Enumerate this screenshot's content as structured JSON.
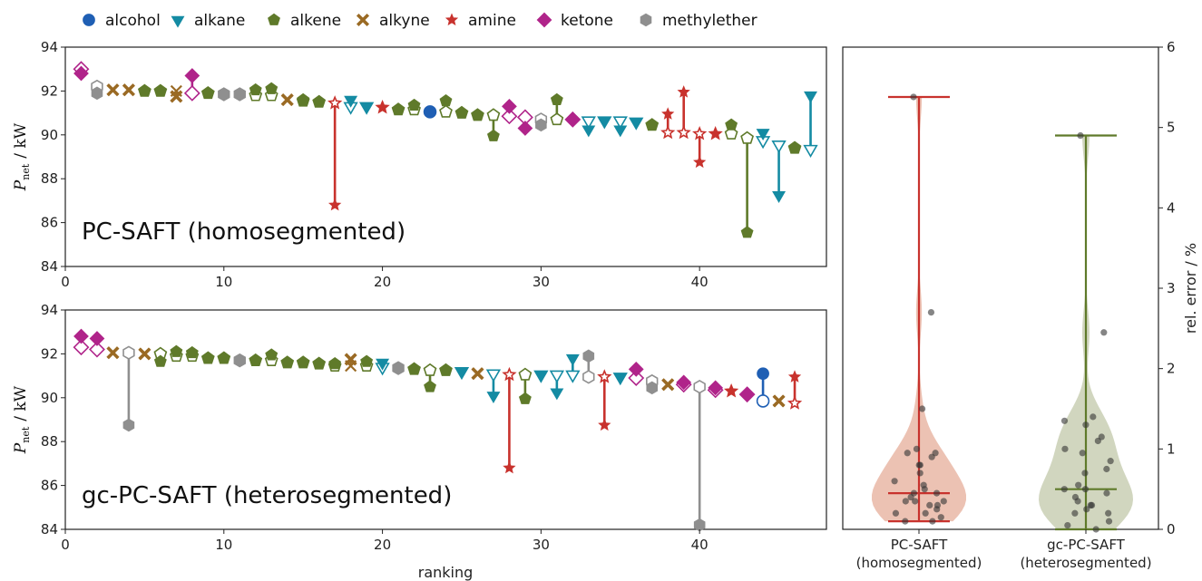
{
  "legend": [
    {
      "label": "alcohol",
      "marker": "circle",
      "color": "#1f5fb4"
    },
    {
      "label": "alkane",
      "marker": "triangle-down",
      "color": "#148ba3"
    },
    {
      "label": "alkene",
      "marker": "pentagon",
      "color": "#5f7a2a"
    },
    {
      "label": "alkyne",
      "marker": "x",
      "color": "#9a6a24"
    },
    {
      "label": "amine",
      "marker": "star",
      "color": "#c8322d"
    },
    {
      "label": "ketone",
      "marker": "diamond",
      "color": "#b0248a"
    },
    {
      "label": "methylether",
      "marker": "hexagon",
      "color": "#8f8f8f"
    }
  ],
  "chart_data": [
    {
      "type": "scatter",
      "panel_label": "PC-SAFT (homosegmented)",
      "ylabel": {
        "symbol": "P",
        "subscript": "net",
        "unit": "/ kW"
      },
      "xlabel": "",
      "xlim": [
        0,
        48
      ],
      "ylim": [
        84,
        94
      ],
      "x_ticks": [
        "0",
        "10",
        "20",
        "30",
        "40"
      ],
      "y_ticks": [
        "84",
        "86",
        "88",
        "90",
        "92",
        "94"
      ],
      "marker_note": "hollow = homosegmented prediction, filled = reference; connected by stem",
      "points": [
        {
          "x": 1,
          "cls": "ketone",
          "hollow": 93.0,
          "filled": 92.8
        },
        {
          "x": 2,
          "cls": "methylether",
          "hollow": 92.2,
          "filled": 91.9
        },
        {
          "x": 3,
          "cls": "alkyne",
          "hollow": 92.05,
          "filled": 92.05
        },
        {
          "x": 4,
          "cls": "alkyne",
          "hollow": 92.05,
          "filled": 92.05
        },
        {
          "x": 5,
          "cls": "alkene",
          "hollow": 92.0,
          "filled": 92.0
        },
        {
          "x": 6,
          "cls": "alkene",
          "hollow": 92.0,
          "filled": 92.0
        },
        {
          "x": 7,
          "cls": "alkyne",
          "hollow": 92.0,
          "filled": 91.75
        },
        {
          "x": 8,
          "cls": "ketone",
          "hollow": 91.9,
          "filled": 92.7
        },
        {
          "x": 9,
          "cls": "alkene",
          "hollow": 91.9,
          "filled": 91.9
        },
        {
          "x": 10,
          "cls": "methylether",
          "hollow": 91.85,
          "filled": 91.85
        },
        {
          "x": 11,
          "cls": "methylether",
          "hollow": 91.85,
          "filled": 91.85
        },
        {
          "x": 12,
          "cls": "alkene",
          "hollow": 91.8,
          "filled": 92.05
        },
        {
          "x": 13,
          "cls": "alkene",
          "hollow": 91.8,
          "filled": 92.1
        },
        {
          "x": 14,
          "cls": "alkyne",
          "hollow": 91.6,
          "filled": 91.6
        },
        {
          "x": 15,
          "cls": "alkene",
          "hollow": 91.55,
          "filled": 91.6
        },
        {
          "x": 16,
          "cls": "alkene",
          "hollow": 91.5,
          "filled": 91.5
        },
        {
          "x": 17,
          "cls": "amine",
          "hollow": 91.45,
          "filled": 86.8
        },
        {
          "x": 18,
          "cls": "alkane",
          "hollow": 91.3,
          "filled": 91.6
        },
        {
          "x": 19,
          "cls": "alkane",
          "hollow": 91.3,
          "filled": 91.3
        },
        {
          "x": 20,
          "cls": "amine",
          "hollow": 91.25,
          "filled": 91.25
        },
        {
          "x": 21,
          "cls": "alkene",
          "hollow": 91.15,
          "filled": 91.15
        },
        {
          "x": 22,
          "cls": "alkene",
          "hollow": 91.15,
          "filled": 91.35
        },
        {
          "x": 23,
          "cls": "alcohol",
          "hollow": 91.05,
          "filled": 91.05
        },
        {
          "x": 24,
          "cls": "alkene",
          "hollow": 91.05,
          "filled": 91.55
        },
        {
          "x": 25,
          "cls": "alkene",
          "hollow": 91.0,
          "filled": 91.0
        },
        {
          "x": 26,
          "cls": "alkene",
          "hollow": 90.9,
          "filled": 90.9
        },
        {
          "x": 27,
          "cls": "alkene",
          "hollow": 90.9,
          "filled": 89.95
        },
        {
          "x": 28,
          "cls": "ketone",
          "hollow": 90.85,
          "filled": 91.3
        },
        {
          "x": 29,
          "cls": "ketone",
          "hollow": 90.8,
          "filled": 90.3
        },
        {
          "x": 30,
          "cls": "methylether",
          "hollow": 90.7,
          "filled": 90.45
        },
        {
          "x": 31,
          "cls": "alkene",
          "hollow": 90.7,
          "filled": 91.6
        },
        {
          "x": 32,
          "cls": "ketone",
          "hollow": 90.7,
          "filled": 90.7
        },
        {
          "x": 33,
          "cls": "alkane",
          "hollow": 90.65,
          "filled": 90.25
        },
        {
          "x": 34,
          "cls": "alkane",
          "hollow": 90.65,
          "filled": 90.65
        },
        {
          "x": 35,
          "cls": "alkane",
          "hollow": 90.65,
          "filled": 90.25
        },
        {
          "x": 36,
          "cls": "alkane",
          "hollow": 90.6,
          "filled": 90.6
        },
        {
          "x": 37,
          "cls": "alkene",
          "hollow": 90.45,
          "filled": 90.45
        },
        {
          "x": 38,
          "cls": "amine",
          "hollow": 90.1,
          "filled": 90.95
        },
        {
          "x": 39,
          "cls": "amine",
          "hollow": 90.1,
          "filled": 91.95
        },
        {
          "x": 40,
          "cls": "amine",
          "hollow": 90.05,
          "filled": 88.75
        },
        {
          "x": 41,
          "cls": "amine",
          "hollow": 90.05,
          "filled": 90.05
        },
        {
          "x": 42,
          "cls": "alkene",
          "hollow": 90.05,
          "filled": 90.45
        },
        {
          "x": 43,
          "cls": "alkene",
          "hollow": 89.85,
          "filled": 85.55
        },
        {
          "x": 44,
          "cls": "alkane",
          "hollow": 89.75,
          "filled": 90.1
        },
        {
          "x": 45,
          "cls": "alkane",
          "hollow": 89.55,
          "filled": 87.25
        },
        {
          "x": 46,
          "cls": "alkene",
          "hollow": 89.4,
          "filled": 89.4
        },
        {
          "x": 47,
          "cls": "alkane",
          "hollow": 89.35,
          "filled": 91.8
        }
      ]
    },
    {
      "type": "scatter",
      "panel_label": "gc-PC-SAFT (heterosegmented)",
      "ylabel": {
        "symbol": "P",
        "subscript": "net",
        "unit": "/ kW"
      },
      "xlabel": "ranking",
      "xlim": [
        0,
        48
      ],
      "ylim": [
        84,
        94
      ],
      "x_ticks": [
        "0",
        "10",
        "20",
        "30",
        "40"
      ],
      "y_ticks": [
        "84",
        "86",
        "88",
        "90",
        "92",
        "94"
      ],
      "marker_note": "hollow = heterosegmented prediction, filled = reference; connected by stem",
      "points": [
        {
          "x": 1,
          "cls": "ketone",
          "hollow": 92.3,
          "filled": 92.8
        },
        {
          "x": 2,
          "cls": "ketone",
          "hollow": 92.2,
          "filled": 92.7
        },
        {
          "x": 3,
          "cls": "alkyne",
          "hollow": 92.05,
          "filled": 92.05
        },
        {
          "x": 4,
          "cls": "methylether",
          "hollow": 92.05,
          "filled": 88.75
        },
        {
          "x": 5,
          "cls": "alkyne",
          "hollow": 92.0,
          "filled": 92.0
        },
        {
          "x": 6,
          "cls": "alkene",
          "hollow": 92.0,
          "filled": 91.65
        },
        {
          "x": 7,
          "cls": "alkene",
          "hollow": 91.9,
          "filled": 92.1
        },
        {
          "x": 8,
          "cls": "alkene",
          "hollow": 91.9,
          "filled": 92.05
        },
        {
          "x": 9,
          "cls": "alkene",
          "hollow": 91.8,
          "filled": 91.8
        },
        {
          "x": 10,
          "cls": "alkene",
          "hollow": 91.8,
          "filled": 91.8
        },
        {
          "x": 11,
          "cls": "methylether",
          "hollow": 91.7,
          "filled": 91.7
        },
        {
          "x": 12,
          "cls": "alkene",
          "hollow": 91.7,
          "filled": 91.7
        },
        {
          "x": 13,
          "cls": "alkene",
          "hollow": 91.7,
          "filled": 91.95
        },
        {
          "x": 14,
          "cls": "alkene",
          "hollow": 91.6,
          "filled": 91.6
        },
        {
          "x": 15,
          "cls": "alkene",
          "hollow": 91.6,
          "filled": 91.6
        },
        {
          "x": 16,
          "cls": "alkene",
          "hollow": 91.55,
          "filled": 91.55
        },
        {
          "x": 17,
          "cls": "alkene",
          "hollow": 91.45,
          "filled": 91.55
        },
        {
          "x": 18,
          "cls": "alkyne",
          "hollow": 91.45,
          "filled": 91.75
        },
        {
          "x": 19,
          "cls": "alkene",
          "hollow": 91.45,
          "filled": 91.65
        },
        {
          "x": 20,
          "cls": "alkane",
          "hollow": 91.4,
          "filled": 91.6
        },
        {
          "x": 21,
          "cls": "methylether",
          "hollow": 91.35,
          "filled": 91.35
        },
        {
          "x": 22,
          "cls": "alkene",
          "hollow": 91.3,
          "filled": 91.3
        },
        {
          "x": 23,
          "cls": "alkene",
          "hollow": 91.25,
          "filled": 90.5
        },
        {
          "x": 24,
          "cls": "alkene",
          "hollow": 91.25,
          "filled": 91.25
        },
        {
          "x": 25,
          "cls": "alkane",
          "hollow": 91.2,
          "filled": 91.2
        },
        {
          "x": 26,
          "cls": "alkyne",
          "hollow": 91.1,
          "filled": 91.1
        },
        {
          "x": 27,
          "cls": "alkane",
          "hollow": 91.1,
          "filled": 90.1
        },
        {
          "x": 28,
          "cls": "amine",
          "hollow": 91.05,
          "filled": 86.8
        },
        {
          "x": 29,
          "cls": "alkene",
          "hollow": 91.05,
          "filled": 89.95
        },
        {
          "x": 30,
          "cls": "alkane",
          "hollow": 91.05,
          "filled": 91.05
        },
        {
          "x": 31,
          "cls": "alkane",
          "hollow": 91.05,
          "filled": 90.25
        },
        {
          "x": 32,
          "cls": "alkane",
          "hollow": 91.05,
          "filled": 91.8
        },
        {
          "x": 33,
          "cls": "methylether",
          "hollow": 90.95,
          "filled": 91.9
        },
        {
          "x": 34,
          "cls": "amine",
          "hollow": 90.95,
          "filled": 88.75
        },
        {
          "x": 35,
          "cls": "alkane",
          "hollow": 90.95,
          "filled": 90.95
        },
        {
          "x": 36,
          "cls": "ketone",
          "hollow": 90.9,
          "filled": 91.3
        },
        {
          "x": 37,
          "cls": "methylether",
          "hollow": 90.75,
          "filled": 90.45
        },
        {
          "x": 38,
          "cls": "alkyne",
          "hollow": 90.6,
          "filled": 90.6
        },
        {
          "x": 39,
          "cls": "ketone",
          "hollow": 90.6,
          "filled": 90.7
        },
        {
          "x": 40,
          "cls": "methylether",
          "hollow": 90.5,
          "filled": 84.2
        },
        {
          "x": 41,
          "cls": "ketone",
          "hollow": 90.35,
          "filled": 90.45
        },
        {
          "x": 42,
          "cls": "amine",
          "hollow": 90.3,
          "filled": 90.3
        },
        {
          "x": 43,
          "cls": "ketone",
          "hollow": 90.15,
          "filled": 90.15
        },
        {
          "x": 44,
          "cls": "alcohol",
          "hollow": 89.85,
          "filled": 91.1
        },
        {
          "x": 45,
          "cls": "alkyne",
          "hollow": 89.85,
          "filled": 89.85
        },
        {
          "x": 46,
          "cls": "amine",
          "hollow": 89.75,
          "filled": 90.95
        }
      ]
    },
    {
      "type": "violin",
      "ylabel": "rel. error / %",
      "ylim": [
        0,
        6
      ],
      "y_ticks": [
        "0",
        "1",
        "2",
        "3",
        "4",
        "5",
        "6"
      ],
      "categories": [
        "PC-SAFT\n(homosegmented)",
        "gc-PC-SAFT\n(heterosegmented)"
      ],
      "series": [
        {
          "category_index": 0,
          "color": "#c8322d",
          "fill": "#e9b7a6",
          "min": 0.1,
          "max": 5.38,
          "median": 0.45,
          "points": [
            5.38,
            2.7,
            1.5,
            1.0,
            0.95,
            0.95,
            0.9,
            0.8,
            0.8,
            0.7,
            0.6,
            0.55,
            0.5,
            0.45,
            0.45,
            0.4,
            0.35,
            0.35,
            0.35,
            0.3,
            0.3,
            0.25,
            0.2,
            0.2,
            0.15,
            0.1,
            0.1
          ]
        },
        {
          "category_index": 1,
          "color": "#5f7a2a",
          "fill": "#c9cfb4",
          "min": 0.0,
          "max": 4.9,
          "median": 0.5,
          "points": [
            4.9,
            2.45,
            1.4,
            1.35,
            1.3,
            1.15,
            1.1,
            1.0,
            0.95,
            0.85,
            0.75,
            0.7,
            0.55,
            0.5,
            0.5,
            0.45,
            0.4,
            0.35,
            0.3,
            0.3,
            0.25,
            0.2,
            0.2,
            0.1,
            0.05,
            0.0
          ]
        }
      ]
    }
  ]
}
